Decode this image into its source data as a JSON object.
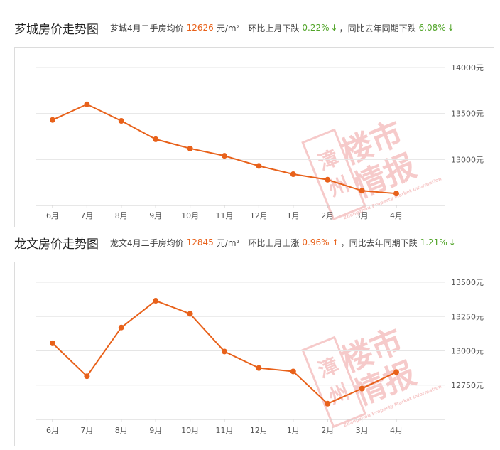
{
  "colors": {
    "line": "#e8611a",
    "down": "#52a52a",
    "up": "#e8611a",
    "grid": "#e5e5e5",
    "watermark": "#f4b9b9"
  },
  "watermark": {
    "chars_top": "楼市",
    "chars_bottom": "情报",
    "side": "漳州",
    "caption": "Zhangzhou Property Market Information"
  },
  "charts": [
    {
      "header": {
        "title": "芗城房价走势图",
        "prefix": "芗城4月二手房均价",
        "price": "12626",
        "unit": "元/m²",
        "mom_label": "环比上月下跌",
        "mom_value": "0.22%",
        "mom_arrow": "↓",
        "yoy_label": "，同比去年同期下跌",
        "yoy_value": "6.08%",
        "yoy_arrow": "↓"
      }
    },
    {
      "header": {
        "title": "龙文房价走势图",
        "prefix": "龙文4月二手房均价",
        "price": "12845",
        "unit": "元/m²",
        "mom_label": "环比上月上涨",
        "mom_value": "0.96%",
        "mom_arrow": "↑",
        "yoy_label": "，同比去年同期下跌",
        "yoy_value": "1.21%",
        "yoy_arrow": "↓"
      }
    }
  ],
  "chart_data": [
    {
      "type": "line",
      "title": "芗城房价走势图",
      "categories": [
        "6月",
        "7月",
        "8月",
        "9月",
        "10月",
        "11月",
        "12月",
        "1月",
        "2月",
        "3月",
        "4月"
      ],
      "series": [
        {
          "values": [
            13430,
            13600,
            13420,
            13220,
            13120,
            13040,
            12930,
            12840,
            12780,
            12660,
            12630
          ]
        }
      ],
      "yticks": [
        13000,
        13500,
        14000
      ],
      "ytick_labels": [
        "13000元",
        "13500元",
        "14000元"
      ],
      "ylim": [
        12500,
        14000
      ],
      "grid": true
    },
    {
      "type": "line",
      "title": "龙文房价走势图",
      "categories": [
        "6月",
        "7月",
        "8月",
        "9月",
        "10月",
        "11月",
        "12月",
        "1月",
        "2月",
        "3月",
        "4月"
      ],
      "series": [
        {
          "values": [
            13055,
            12815,
            13170,
            13365,
            13270,
            12995,
            12875,
            12850,
            12615,
            12725,
            12845
          ]
        }
      ],
      "yticks": [
        12750,
        13000,
        13250,
        13500
      ],
      "ytick_labels": [
        "12750元",
        "13000元",
        "13250元",
        "13500元"
      ],
      "ylim": [
        12500,
        13500
      ],
      "grid": true
    }
  ]
}
